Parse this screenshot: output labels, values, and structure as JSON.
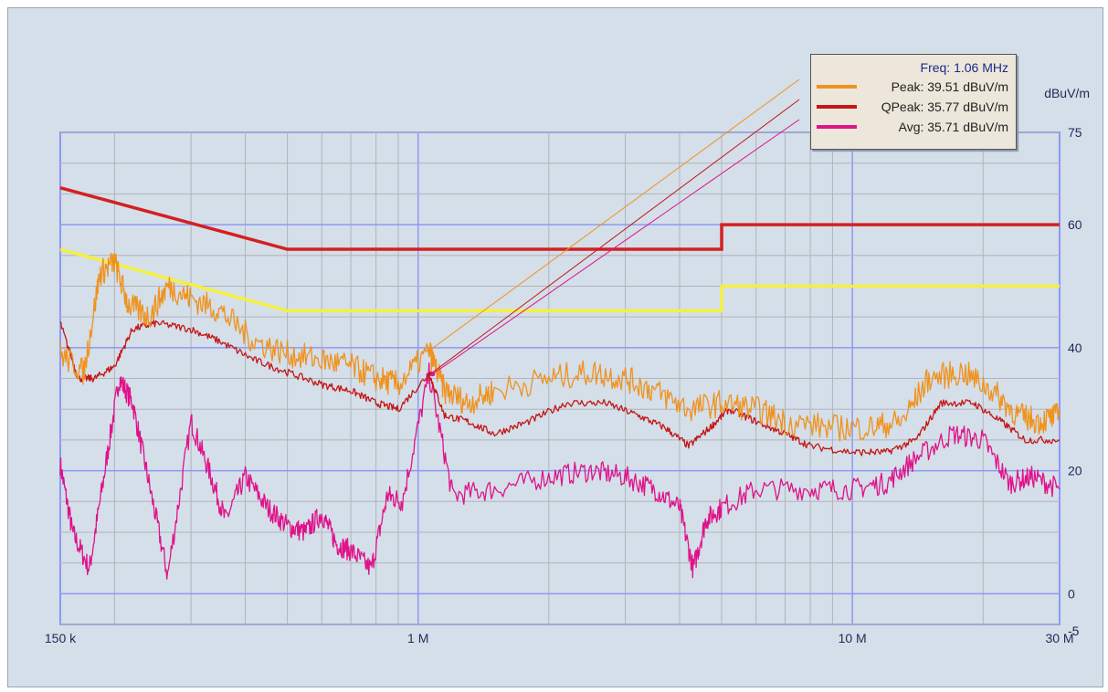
{
  "chart_data": {
    "type": "line",
    "x_scale": "log",
    "xlim_hz": [
      150000,
      30000000
    ],
    "ylim": [
      -5,
      75
    ],
    "y_unit_label": "dBuV/m",
    "x_ticks": [
      {
        "hz": 150000,
        "label": "150 k"
      },
      {
        "hz": 1000000,
        "label": "1 M"
      },
      {
        "hz": 10000000,
        "label": "10 M"
      },
      {
        "hz": 30000000,
        "label": "30 M"
      }
    ],
    "y_ticks": [
      {
        "value": 75,
        "label": "75"
      },
      {
        "value": 60,
        "label": "60"
      },
      {
        "value": 40,
        "label": "40"
      },
      {
        "value": 20,
        "label": "20"
      },
      {
        "value": 0,
        "label": "0"
      },
      {
        "value": -5,
        "label": "-5"
      }
    ],
    "grid": true,
    "limit_lines": [
      {
        "color": "#d42020",
        "points": [
          [
            150000,
            66
          ],
          [
            500000,
            56
          ],
          [
            5000000,
            56
          ],
          [
            5000000,
            60
          ],
          [
            30000000,
            60
          ]
        ]
      },
      {
        "color": "#f4f040",
        "points": [
          [
            150000,
            56
          ],
          [
            500000,
            46
          ],
          [
            5000000,
            46
          ],
          [
            5000000,
            50
          ],
          [
            30000000,
            50
          ]
        ]
      }
    ],
    "series": [
      {
        "name": "Peak",
        "color": "#f0921e",
        "points": [
          [
            150000,
            39
          ],
          [
            170000,
            36
          ],
          [
            185000,
            52
          ],
          [
            200000,
            54
          ],
          [
            215000,
            47
          ],
          [
            240000,
            45
          ],
          [
            265000,
            50
          ],
          [
            300000,
            48
          ],
          [
            350000,
            46
          ],
          [
            420000,
            41
          ],
          [
            500000,
            39
          ],
          [
            600000,
            38
          ],
          [
            700000,
            37
          ],
          [
            800000,
            35
          ],
          [
            900000,
            34
          ],
          [
            1060000,
            39.51
          ],
          [
            1150000,
            33
          ],
          [
            1300000,
            31
          ],
          [
            1500000,
            33
          ],
          [
            2000000,
            35
          ],
          [
            2500000,
            36
          ],
          [
            3000000,
            35
          ],
          [
            3500000,
            33
          ],
          [
            4200000,
            30
          ],
          [
            5000000,
            31
          ],
          [
            6000000,
            30
          ],
          [
            7000000,
            28
          ],
          [
            9000000,
            27
          ],
          [
            11000000,
            27
          ],
          [
            13000000,
            28
          ],
          [
            15000000,
            35
          ],
          [
            18000000,
            36
          ],
          [
            21000000,
            33
          ],
          [
            24000000,
            29
          ],
          [
            27000000,
            28
          ],
          [
            30000000,
            29
          ]
        ]
      },
      {
        "name": "QPeak",
        "color": "#c41616",
        "points": [
          [
            150000,
            44
          ],
          [
            165000,
            35
          ],
          [
            180000,
            35
          ],
          [
            200000,
            37
          ],
          [
            220000,
            43
          ],
          [
            250000,
            44
          ],
          [
            300000,
            43
          ],
          [
            350000,
            41
          ],
          [
            420000,
            38
          ],
          [
            500000,
            36
          ],
          [
            600000,
            34
          ],
          [
            700000,
            33
          ],
          [
            800000,
            31
          ],
          [
            900000,
            30
          ],
          [
            1060000,
            35.77
          ],
          [
            1150000,
            29
          ],
          [
            1300000,
            28
          ],
          [
            1500000,
            26
          ],
          [
            1800000,
            28
          ],
          [
            2200000,
            31
          ],
          [
            2700000,
            31
          ],
          [
            3200000,
            29
          ],
          [
            3700000,
            27
          ],
          [
            4200000,
            24
          ],
          [
            4700000,
            27
          ],
          [
            5200000,
            30
          ],
          [
            6000000,
            28
          ],
          [
            7000000,
            26
          ],
          [
            8000000,
            24
          ],
          [
            10000000,
            23
          ],
          [
            12000000,
            23
          ],
          [
            14000000,
            25
          ],
          [
            16000000,
            31
          ],
          [
            19000000,
            31
          ],
          [
            22000000,
            28
          ],
          [
            25000000,
            25
          ],
          [
            30000000,
            25
          ]
        ]
      },
      {
        "name": "Avg",
        "color": "#e0128a",
        "points": [
          [
            150000,
            21
          ],
          [
            160000,
            10
          ],
          [
            175000,
            4
          ],
          [
            190000,
            20
          ],
          [
            205000,
            35
          ],
          [
            220000,
            31
          ],
          [
            240000,
            18
          ],
          [
            265000,
            3
          ],
          [
            300000,
            28
          ],
          [
            330000,
            20
          ],
          [
            360000,
            12
          ],
          [
            400000,
            19
          ],
          [
            450000,
            14
          ],
          [
            500000,
            11
          ],
          [
            550000,
            10
          ],
          [
            600000,
            13
          ],
          [
            650000,
            8
          ],
          [
            700000,
            7
          ],
          [
            780000,
            4
          ],
          [
            850000,
            16
          ],
          [
            920000,
            15
          ],
          [
            1060000,
            35.71
          ],
          [
            1200000,
            16
          ],
          [
            1500000,
            17
          ],
          [
            2000000,
            19
          ],
          [
            2500000,
            20
          ],
          [
            3000000,
            19
          ],
          [
            3500000,
            17
          ],
          [
            4000000,
            14
          ],
          [
            4300000,
            4
          ],
          [
            4600000,
            12
          ],
          [
            5000000,
            14
          ],
          [
            6000000,
            17
          ],
          [
            8000000,
            17
          ],
          [
            10000000,
            17
          ],
          [
            12000000,
            18
          ],
          [
            14000000,
            22
          ],
          [
            17000000,
            26
          ],
          [
            20000000,
            25
          ],
          [
            23000000,
            18
          ],
          [
            26000000,
            19
          ],
          [
            30000000,
            17
          ]
        ]
      }
    ],
    "cursor_hz": 1060000
  },
  "legend": {
    "freq": "Freq: 1.06 MHz",
    "rows": [
      {
        "text": "Peak: 39.51 dBuV/m",
        "color": "#f0921e"
      },
      {
        "text": "QPeak: 35.77 dBuV/m",
        "color": "#c41616"
      },
      {
        "text": "Avg: 35.71 dBuV/m",
        "color": "#e0128a"
      }
    ]
  }
}
